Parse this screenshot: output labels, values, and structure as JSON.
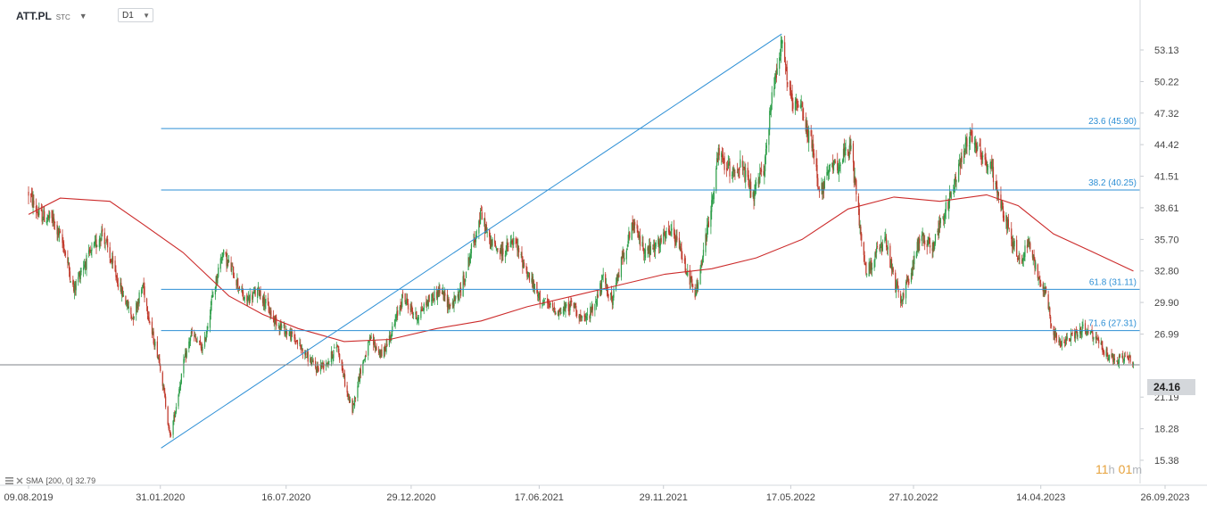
{
  "header": {
    "symbol": "ATT.PL",
    "market": "STC",
    "caret": "▼",
    "timeframe": "D1"
  },
  "indicator": {
    "label": "SMA",
    "params": "[200,  0]",
    "value": "32.79"
  },
  "timer": {
    "hours": "11",
    "hours_unit": "h",
    "minutes": "01",
    "minutes_unit": "m"
  },
  "current_price": "24.16",
  "colors": {
    "bull": "#2e9e4a",
    "bear": "#c0392b",
    "sma": "#cc2b2b",
    "fib": "#2d8fd5",
    "price_line": "#7f8389"
  },
  "chart_data": {
    "type": "candlestick",
    "x_tick_labels": [
      "09.08.2019",
      "31.01.2020",
      "16.07.2020",
      "29.12.2020",
      "17.06.2021",
      "29.11.2021",
      "17.05.2022",
      "27.10.2022",
      "14.04.2023",
      "26.09.2023"
    ],
    "y_tick_labels": [
      "53.13",
      "50.22",
      "47.32",
      "44.42",
      "41.51",
      "38.61",
      "35.70",
      "32.80",
      "29.90",
      "26.99",
      "21.19",
      "18.28",
      "15.38"
    ],
    "ylim": [
      15.38,
      54.6
    ],
    "fib_levels": [
      {
        "label": "23.6 (45.90)",
        "value": 45.9
      },
      {
        "label": "38.2 (40.25)",
        "value": 40.25
      },
      {
        "label": "61.8 (31.11)",
        "value": 31.11
      },
      {
        "label": "71.6 (27.31)",
        "value": 27.31
      }
    ],
    "trendline": {
      "from": {
        "date": "2020-02-01",
        "price": 16.5
      },
      "to": {
        "date": "2022-05-05",
        "price": 54.6
      }
    },
    "close_path": [
      [
        "2019-08-09",
        40.0
      ],
      [
        "2019-08-22",
        38.0
      ],
      [
        "2019-09-10",
        37.5
      ],
      [
        "2019-09-25",
        35.0
      ],
      [
        "2019-10-08",
        31.0
      ],
      [
        "2019-10-18",
        33.0
      ],
      [
        "2019-11-05",
        35.0
      ],
      [
        "2019-11-15",
        36.5
      ],
      [
        "2019-11-25",
        34.0
      ],
      [
        "2019-12-10",
        31.0
      ],
      [
        "2019-12-25",
        28.5
      ],
      [
        "2020-01-08",
        31.5
      ],
      [
        "2020-01-20",
        27.0
      ],
      [
        "2020-01-30",
        24.5
      ],
      [
        "2020-02-06",
        21.0
      ],
      [
        "2020-02-13",
        17.5
      ],
      [
        "2020-02-20",
        20.0
      ],
      [
        "2020-03-01",
        24.0
      ],
      [
        "2020-03-12",
        27.0
      ],
      [
        "2020-03-28",
        25.5
      ],
      [
        "2020-04-08",
        30.0
      ],
      [
        "2020-04-22",
        34.5
      ],
      [
        "2020-05-08",
        32.5
      ],
      [
        "2020-05-22",
        30.0
      ],
      [
        "2020-06-10",
        31.0
      ],
      [
        "2020-06-28",
        28.5
      ],
      [
        "2020-07-12",
        27.5
      ],
      [
        "2020-07-28",
        26.5
      ],
      [
        "2020-08-12",
        25.0
      ],
      [
        "2020-08-25",
        23.8
      ],
      [
        "2020-09-10",
        24.5
      ],
      [
        "2020-09-22",
        26.0
      ],
      [
        "2020-10-05",
        21.5
      ],
      [
        "2020-10-12",
        20.0
      ],
      [
        "2020-10-22",
        23.5
      ],
      [
        "2020-11-05",
        26.5
      ],
      [
        "2020-11-20",
        25.0
      ],
      [
        "2020-12-05",
        27.5
      ],
      [
        "2020-12-18",
        30.5
      ],
      [
        "2021-01-05",
        28.5
      ],
      [
        "2021-01-20",
        30.0
      ],
      [
        "2021-02-05",
        31.0
      ],
      [
        "2021-02-20",
        29.5
      ],
      [
        "2021-03-05",
        31.0
      ],
      [
        "2021-03-20",
        35.0
      ],
      [
        "2021-04-01",
        38.0
      ],
      [
        "2021-04-12",
        35.5
      ],
      [
        "2021-04-28",
        34.5
      ],
      [
        "2021-05-15",
        35.5
      ],
      [
        "2021-05-30",
        33.0
      ],
      [
        "2021-06-15",
        30.5
      ],
      [
        "2021-06-30",
        29.5
      ],
      [
        "2021-07-15",
        29.0
      ],
      [
        "2021-08-01",
        29.8
      ],
      [
        "2021-08-15",
        28.0
      ],
      [
        "2021-08-28",
        29.5
      ],
      [
        "2021-09-10",
        32.0
      ],
      [
        "2021-09-22",
        30.0
      ],
      [
        "2021-10-05",
        34.0
      ],
      [
        "2021-10-20",
        37.0
      ],
      [
        "2021-11-05",
        34.5
      ],
      [
        "2021-11-20",
        35.0
      ],
      [
        "2021-12-08",
        36.5
      ],
      [
        "2021-12-20",
        35.0
      ],
      [
        "2022-01-03",
        32.0
      ],
      [
        "2022-01-10",
        30.5
      ],
      [
        "2022-01-20",
        34.0
      ],
      [
        "2022-02-01",
        39.0
      ],
      [
        "2022-02-10",
        43.5
      ],
      [
        "2022-02-25",
        42.0
      ],
      [
        "2022-03-12",
        42.5
      ],
      [
        "2022-03-28",
        39.5
      ],
      [
        "2022-04-12",
        42.5
      ],
      [
        "2022-04-24",
        50.0
      ],
      [
        "2022-05-05",
        54.0
      ],
      [
        "2022-05-18",
        48.0
      ],
      [
        "2022-06-01",
        47.5
      ],
      [
        "2022-06-15",
        44.0
      ],
      [
        "2022-06-25",
        40.0
      ],
      [
        "2022-07-08",
        42.0
      ],
      [
        "2022-07-22",
        43.0
      ],
      [
        "2022-08-05",
        44.0
      ],
      [
        "2022-08-15",
        38.0
      ],
      [
        "2022-08-25",
        32.5
      ],
      [
        "2022-09-08",
        34.5
      ],
      [
        "2022-09-20",
        35.5
      ],
      [
        "2022-10-01",
        32.0
      ],
      [
        "2022-10-10",
        30.0
      ],
      [
        "2022-10-25",
        33.0
      ],
      [
        "2022-11-05",
        36.0
      ],
      [
        "2022-11-20",
        35.0
      ],
      [
        "2022-12-01",
        37.0
      ],
      [
        "2022-12-15",
        39.5
      ],
      [
        "2023-01-01",
        44.0
      ],
      [
        "2023-01-12",
        45.5
      ],
      [
        "2023-01-25",
        43.5
      ],
      [
        "2023-02-08",
        42.0
      ],
      [
        "2023-02-22",
        38.5
      ],
      [
        "2023-03-05",
        36.0
      ],
      [
        "2023-03-18",
        33.5
      ],
      [
        "2023-03-28",
        35.5
      ],
      [
        "2023-04-10",
        32.5
      ],
      [
        "2023-04-22",
        30.5
      ],
      [
        "2023-05-01",
        27.0
      ],
      [
        "2023-05-12",
        26.0
      ],
      [
        "2023-05-25",
        26.8
      ],
      [
        "2023-06-08",
        27.5
      ],
      [
        "2023-06-20",
        27.0
      ],
      [
        "2023-07-01",
        26.0
      ],
      [
        "2023-07-12",
        25.0
      ],
      [
        "2023-07-25",
        24.5
      ],
      [
        "2023-08-05",
        25.0
      ],
      [
        "2023-08-15",
        24.16
      ]
    ],
    "sma_path": [
      [
        "2019-08-09",
        38.0
      ],
      [
        "2019-09-20",
        39.5
      ],
      [
        "2019-11-25",
        39.2
      ],
      [
        "2020-01-10",
        37.0
      ],
      [
        "2020-03-01",
        34.5
      ],
      [
        "2020-05-01",
        30.5
      ],
      [
        "2020-06-15",
        28.8
      ],
      [
        "2020-08-01",
        27.5
      ],
      [
        "2020-10-01",
        26.3
      ],
      [
        "2020-12-01",
        26.5
      ],
      [
        "2021-02-01",
        27.5
      ],
      [
        "2021-04-01",
        28.2
      ],
      [
        "2021-06-01",
        29.5
      ],
      [
        "2021-08-01",
        30.5
      ],
      [
        "2021-10-01",
        31.5
      ],
      [
        "2021-12-01",
        32.5
      ],
      [
        "2022-02-01",
        33.0
      ],
      [
        "2022-04-01",
        34.0
      ],
      [
        "2022-06-01",
        35.7
      ],
      [
        "2022-08-01",
        38.5
      ],
      [
        "2022-10-01",
        39.6
      ],
      [
        "2022-12-01",
        39.2
      ],
      [
        "2023-02-01",
        39.8
      ],
      [
        "2023-03-15",
        38.8
      ],
      [
        "2023-05-01",
        36.2
      ],
      [
        "2023-06-20",
        34.6
      ],
      [
        "2023-08-15",
        32.79
      ]
    ]
  }
}
